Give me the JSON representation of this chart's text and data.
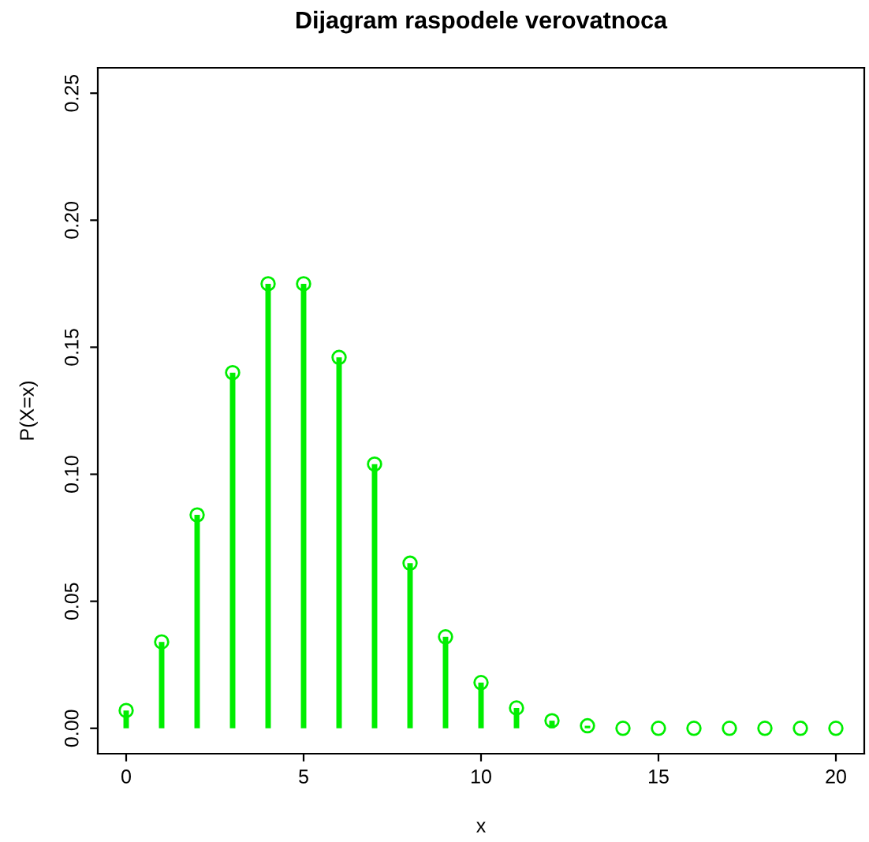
{
  "chart_data": {
    "type": "lollipop",
    "title": "Dijagram raspodele verovatnoca",
    "xlabel": "x",
    "ylabel": "P(X=x)",
    "x": [
      0,
      1,
      2,
      3,
      4,
      5,
      6,
      7,
      8,
      9,
      10,
      11,
      12,
      13,
      14,
      15,
      16,
      17,
      18,
      19,
      20
    ],
    "values": [
      0.007,
      0.034,
      0.084,
      0.14,
      0.175,
      0.175,
      0.146,
      0.104,
      0.065,
      0.036,
      0.018,
      0.008,
      0.003,
      0.001,
      0,
      0,
      0,
      0,
      0,
      0,
      0
    ],
    "color": "#00ee00",
    "marker": "circle",
    "xlim": [
      -0.8,
      20.8
    ],
    "ylim": [
      -0.01,
      0.26
    ],
    "xticks": [
      0,
      5,
      10,
      15,
      20
    ],
    "yticks": [
      {
        "value": 0,
        "label": "0.00"
      },
      {
        "value": 0.05,
        "label": "0.05"
      },
      {
        "value": 0.1,
        "label": "0.10"
      },
      {
        "value": 0.15,
        "label": "0.15"
      },
      {
        "value": 0.2,
        "label": "0.20"
      },
      {
        "value": 0.25,
        "label": "0.25"
      }
    ],
    "grid": false,
    "legend": false
  }
}
